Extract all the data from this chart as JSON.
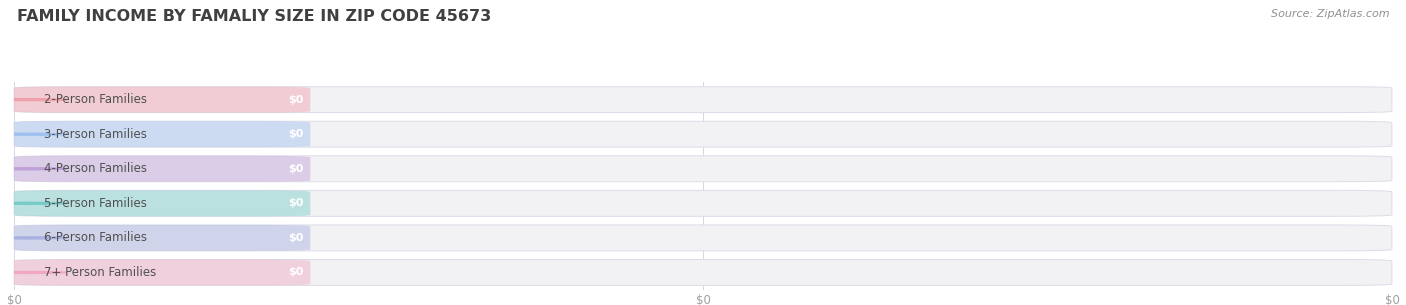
{
  "title": "FAMILY INCOME BY FAMALIY SIZE IN ZIP CODE 45673",
  "source_text": "Source: ZipAtlas.com",
  "categories": [
    "2-Person Families",
    "3-Person Families",
    "4-Person Families",
    "5-Person Families",
    "6-Person Families",
    "7+ Person Families"
  ],
  "values": [
    0,
    0,
    0,
    0,
    0,
    0
  ],
  "bar_colors": [
    "#f0a0aa",
    "#a0c0f0",
    "#c0a0d8",
    "#78ccc8",
    "#a8b0e0",
    "#f0a8c0"
  ],
  "value_labels": [
    "$0",
    "$0",
    "$0",
    "$0",
    "$0",
    "$0"
  ],
  "bg_color": "#ffffff",
  "row_bg_color": "#f2f2f5",
  "row_border_color": "#dcdce8",
  "title_color": "#404040",
  "label_color": "#505050",
  "source_color": "#909090",
  "axis_tick_color": "#a0a0a0",
  "xtick_labels": [
    "$0",
    "$0",
    "$0"
  ],
  "title_fontsize": 11.5,
  "label_fontsize": 8.5,
  "value_fontsize": 8,
  "source_fontsize": 8
}
